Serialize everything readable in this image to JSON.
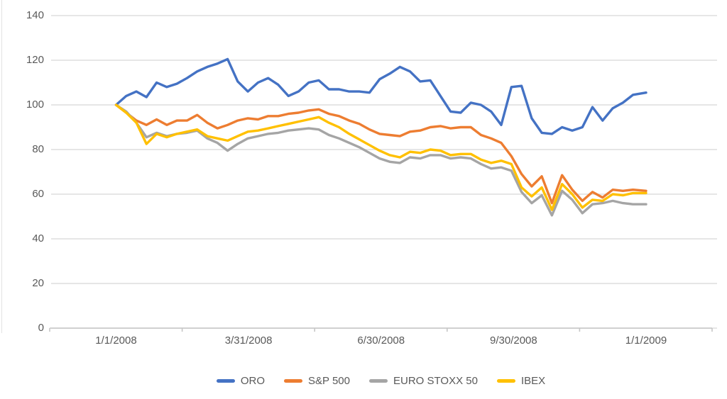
{
  "chart_data": {
    "type": "line",
    "title": "",
    "xlabel": "",
    "ylabel": "",
    "grid": true,
    "legend_position": "bottom",
    "x_axis": {
      "tick_labels": [
        "1/1/2008",
        "3/31/2008",
        "6/30/2008",
        "9/30/2008",
        "1/1/2009"
      ],
      "range_days": [
        0,
        366
      ]
    },
    "y_axis": {
      "ticks": [
        0,
        20,
        40,
        60,
        80,
        100,
        120,
        140
      ],
      "min": 0,
      "max": 140
    },
    "colors": {
      "gridline": "#dedede",
      "axis_line": "#c6c6c6",
      "label_text": "#595959",
      "background": "#ffffff"
    },
    "series": [
      {
        "name": "ORO",
        "color": "#4472C4",
        "points": [
          [
            0,
            100
          ],
          [
            7,
            104
          ],
          [
            14,
            106
          ],
          [
            21,
            103.5
          ],
          [
            28,
            110
          ],
          [
            35,
            108
          ],
          [
            42,
            109.5
          ],
          [
            49,
            112
          ],
          [
            56,
            115
          ],
          [
            63,
            117
          ],
          [
            70,
            118.5
          ],
          [
            77,
            120.5
          ],
          [
            84,
            110.5
          ],
          [
            91,
            106
          ],
          [
            98,
            110
          ],
          [
            105,
            112
          ],
          [
            112,
            109
          ],
          [
            119,
            104
          ],
          [
            126,
            106
          ],
          [
            133,
            110
          ],
          [
            140,
            111
          ],
          [
            147,
            107
          ],
          [
            154,
            107
          ],
          [
            161,
            106
          ],
          [
            168,
            106
          ],
          [
            175,
            105.5
          ],
          [
            182,
            111.5
          ],
          [
            189,
            114
          ],
          [
            196,
            117
          ],
          [
            203,
            115
          ],
          [
            210,
            110.5
          ],
          [
            217,
            111
          ],
          [
            224,
            104
          ],
          [
            231,
            97
          ],
          [
            238,
            96.5
          ],
          [
            245,
            101
          ],
          [
            252,
            100
          ],
          [
            259,
            97
          ],
          [
            266,
            91
          ],
          [
            273,
            108
          ],
          [
            280,
            108.5
          ],
          [
            287,
            94
          ],
          [
            294,
            87.5
          ],
          [
            301,
            87
          ],
          [
            308,
            90
          ],
          [
            315,
            88.5
          ],
          [
            322,
            90
          ],
          [
            329,
            99
          ],
          [
            336,
            93
          ],
          [
            343,
            98.5
          ],
          [
            350,
            101
          ],
          [
            357,
            104.5
          ],
          [
            366,
            105.5
          ]
        ]
      },
      {
        "name": "S&P 500",
        "color": "#ED7D31",
        "points": [
          [
            0,
            100
          ],
          [
            7,
            96.5
          ],
          [
            14,
            93
          ],
          [
            21,
            91
          ],
          [
            28,
            93.5
          ],
          [
            35,
            91
          ],
          [
            42,
            93
          ],
          [
            49,
            93
          ],
          [
            56,
            95.5
          ],
          [
            63,
            92
          ],
          [
            70,
            89.5
          ],
          [
            77,
            91
          ],
          [
            84,
            93
          ],
          [
            91,
            94
          ],
          [
            98,
            93.5
          ],
          [
            105,
            95
          ],
          [
            112,
            95
          ],
          [
            119,
            96
          ],
          [
            126,
            96.5
          ],
          [
            133,
            97.5
          ],
          [
            140,
            98
          ],
          [
            147,
            96
          ],
          [
            154,
            95
          ],
          [
            161,
            93
          ],
          [
            168,
            91.5
          ],
          [
            175,
            89
          ],
          [
            182,
            87
          ],
          [
            189,
            86.5
          ],
          [
            196,
            86
          ],
          [
            203,
            88
          ],
          [
            210,
            88.5
          ],
          [
            217,
            90
          ],
          [
            224,
            90.5
          ],
          [
            231,
            89.5
          ],
          [
            238,
            90
          ],
          [
            245,
            90
          ],
          [
            252,
            86.5
          ],
          [
            259,
            85
          ],
          [
            266,
            83
          ],
          [
            273,
            77
          ],
          [
            280,
            69
          ],
          [
            287,
            63.5
          ],
          [
            294,
            68
          ],
          [
            301,
            56
          ],
          [
            308,
            68.5
          ],
          [
            315,
            62
          ],
          [
            322,
            57
          ],
          [
            329,
            61
          ],
          [
            336,
            58.5
          ],
          [
            343,
            62
          ],
          [
            350,
            61.5
          ],
          [
            357,
            62
          ],
          [
            366,
            61.5
          ]
        ]
      },
      {
        "name": "EURO STOXX 50",
        "color": "#A5A5A5",
        "points": [
          [
            0,
            100
          ],
          [
            7,
            97
          ],
          [
            14,
            92
          ],
          [
            21,
            85.5
          ],
          [
            28,
            87.5
          ],
          [
            35,
            86
          ],
          [
            42,
            87
          ],
          [
            49,
            87.5
          ],
          [
            56,
            88.5
          ],
          [
            63,
            85
          ],
          [
            70,
            83
          ],
          [
            77,
            79.5
          ],
          [
            84,
            82.5
          ],
          [
            91,
            85
          ],
          [
            98,
            86
          ],
          [
            105,
            87
          ],
          [
            112,
            87.5
          ],
          [
            119,
            88.5
          ],
          [
            126,
            89
          ],
          [
            133,
            89.5
          ],
          [
            140,
            89
          ],
          [
            147,
            86.5
          ],
          [
            154,
            85
          ],
          [
            161,
            83
          ],
          [
            168,
            81
          ],
          [
            175,
            78.5
          ],
          [
            182,
            76
          ],
          [
            189,
            74.5
          ],
          [
            196,
            74
          ],
          [
            203,
            76.5
          ],
          [
            210,
            76
          ],
          [
            217,
            77.5
          ],
          [
            224,
            77.5
          ],
          [
            231,
            76
          ],
          [
            238,
            76.5
          ],
          [
            245,
            76
          ],
          [
            252,
            73.5
          ],
          [
            259,
            71.5
          ],
          [
            266,
            72
          ],
          [
            273,
            70.5
          ],
          [
            280,
            61
          ],
          [
            287,
            56
          ],
          [
            294,
            59.5
          ],
          [
            301,
            50.5
          ],
          [
            308,
            61.5
          ],
          [
            315,
            57.5
          ],
          [
            322,
            51.5
          ],
          [
            329,
            55.5
          ],
          [
            336,
            56
          ],
          [
            343,
            57
          ],
          [
            350,
            56
          ],
          [
            357,
            55.5
          ],
          [
            366,
            55.5
          ]
        ]
      },
      {
        "name": "IBEX",
        "color": "#FFC000",
        "points": [
          [
            0,
            100
          ],
          [
            7,
            96.5
          ],
          [
            14,
            92
          ],
          [
            21,
            82.5
          ],
          [
            28,
            87
          ],
          [
            35,
            85.5
          ],
          [
            42,
            87
          ],
          [
            49,
            88
          ],
          [
            56,
            89
          ],
          [
            63,
            86
          ],
          [
            70,
            85
          ],
          [
            77,
            84
          ],
          [
            84,
            86
          ],
          [
            91,
            88
          ],
          [
            98,
            88.5
          ],
          [
            105,
            89.5
          ],
          [
            112,
            90.5
          ],
          [
            119,
            91.5
          ],
          [
            126,
            92.5
          ],
          [
            133,
            93.5
          ],
          [
            140,
            94.5
          ],
          [
            147,
            92
          ],
          [
            154,
            90
          ],
          [
            161,
            87
          ],
          [
            168,
            84.5
          ],
          [
            175,
            82
          ],
          [
            182,
            79.5
          ],
          [
            189,
            77.5
          ],
          [
            196,
            76.5
          ],
          [
            203,
            79
          ],
          [
            210,
            78.5
          ],
          [
            217,
            80
          ],
          [
            224,
            79.5
          ],
          [
            231,
            77.5
          ],
          [
            238,
            78
          ],
          [
            245,
            78
          ],
          [
            252,
            75.5
          ],
          [
            259,
            74
          ],
          [
            266,
            75
          ],
          [
            273,
            73.5
          ],
          [
            280,
            63
          ],
          [
            287,
            59
          ],
          [
            294,
            63
          ],
          [
            301,
            53
          ],
          [
            308,
            64.5
          ],
          [
            315,
            60
          ],
          [
            322,
            54
          ],
          [
            329,
            57.5
          ],
          [
            336,
            57
          ],
          [
            343,
            60
          ],
          [
            350,
            59.5
          ],
          [
            357,
            60.5
          ],
          [
            366,
            60.5
          ]
        ]
      }
    ]
  }
}
